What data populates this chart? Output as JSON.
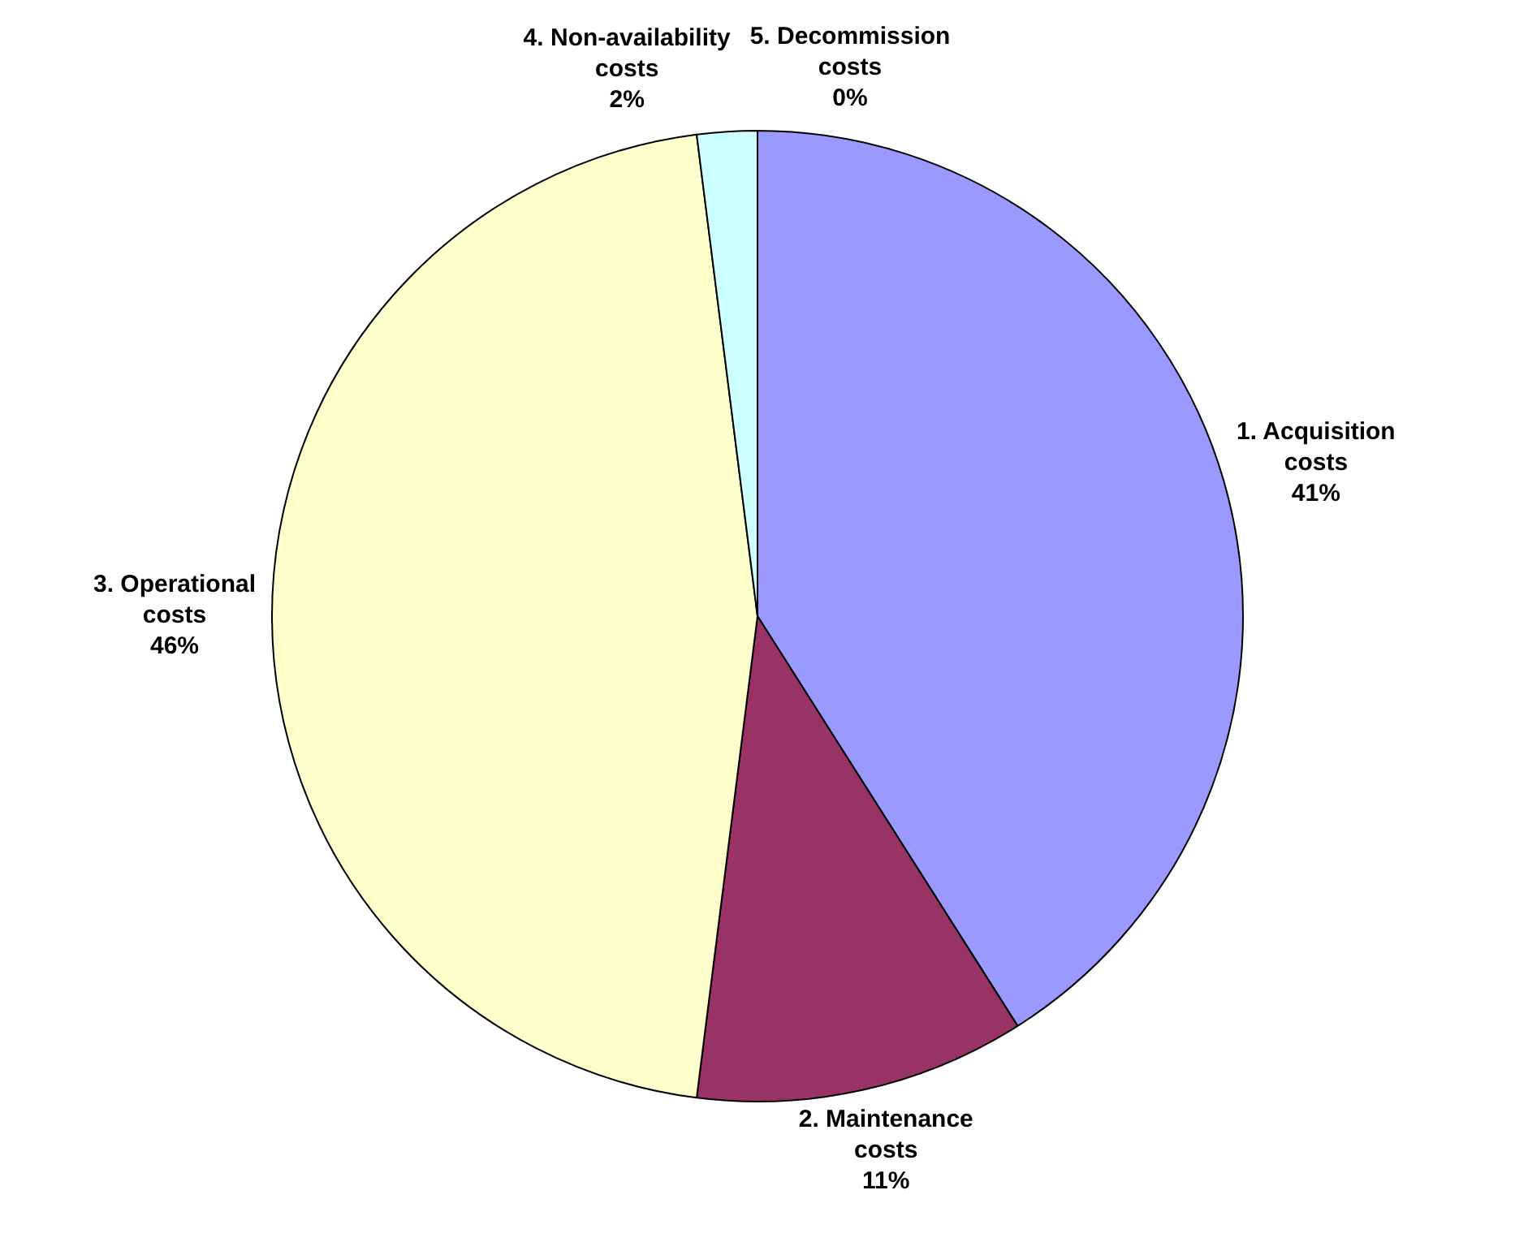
{
  "chart_data": {
    "type": "pie",
    "categories": [
      "1. Acquisition costs",
      "2. Maintenance costs",
      "3. Operational costs",
      "4. Non-availability costs",
      "5. Decommission costs"
    ],
    "values": [
      41,
      11,
      46,
      2,
      0
    ],
    "colors": [
      "#9999ff",
      "#993366",
      "#ffffcc",
      "#ccffff",
      "#660066"
    ],
    "value_labels": [
      "41%",
      "11%",
      "46%",
      "2%",
      "0%"
    ],
    "legend": false
  }
}
